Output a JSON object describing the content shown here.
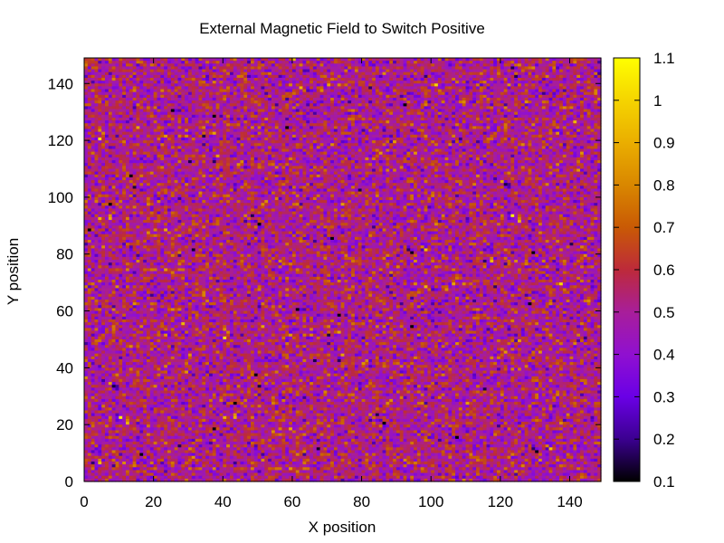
{
  "chart_data": {
    "type": "heatmap",
    "title": "External Magnetic Field to Switch Positive",
    "xlabel": "X position",
    "ylabel": "Y position",
    "xlim": [
      0,
      149
    ],
    "ylim": [
      0,
      149
    ],
    "x_ticks": [
      "0",
      "20",
      "40",
      "60",
      "80",
      "100",
      "120",
      "140"
    ],
    "y_ticks": [
      "0",
      "20",
      "40",
      "60",
      "80",
      "100",
      "120",
      "140"
    ],
    "grid": {
      "columns": 149,
      "rows": 149,
      "distribution": "noisy random field, values mostly between 0.3 and 0.8, mean about 0.52"
    },
    "colorbar": {
      "min": 0.1,
      "max": 1.1,
      "ticks": [
        "0.1",
        "0.2",
        "0.3",
        "0.4",
        "0.5",
        "0.6",
        "0.7",
        "0.8",
        "0.9",
        "1",
        "1.1"
      ],
      "colormap": "gnuplot-pm3d (black-purple-red-orange-yellow)"
    },
    "grid_lines": false,
    "legend": "none"
  }
}
